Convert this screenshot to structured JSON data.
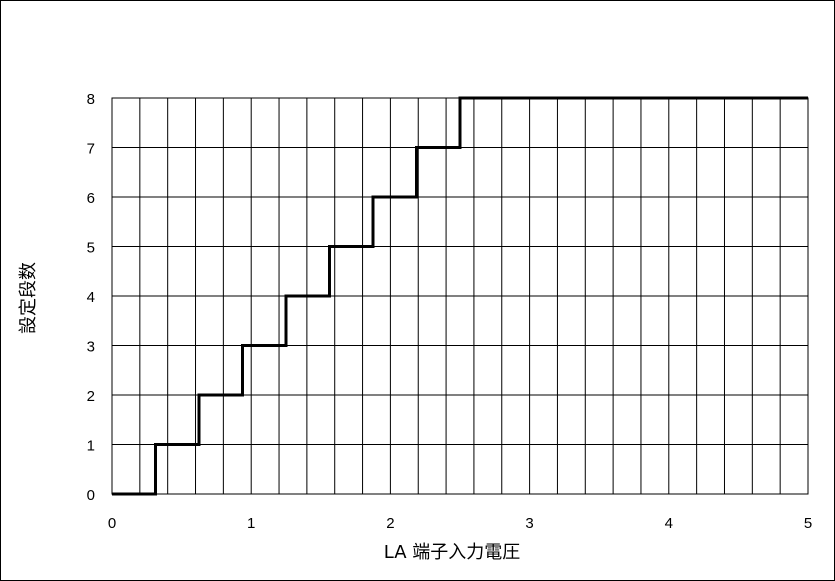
{
  "chart_data": {
    "type": "line",
    "title": "",
    "xlabel": "LA 端子入力電圧",
    "ylabel": "設定段数",
    "xlim": [
      0,
      5
    ],
    "ylim": [
      0,
      8
    ],
    "x_ticks": [
      0,
      1,
      2,
      3,
      4,
      5
    ],
    "y_ticks": [
      0,
      1,
      2,
      3,
      4,
      5,
      6,
      7,
      8
    ],
    "x_tick_labels": [
      "0",
      "1",
      "2",
      "3",
      "4",
      "5"
    ],
    "y_tick_labels": [
      "0",
      "1",
      "2",
      "3",
      "4",
      "5",
      "6",
      "7",
      "8"
    ],
    "minor_x_step": 0.2,
    "grid": true,
    "legend": "none",
    "line_color": "#000000",
    "series": [
      {
        "step": "post",
        "x": [
          0,
          0.3125,
          0.625,
          0.9375,
          1.25,
          1.5625,
          1.875,
          2.1875,
          2.5,
          5
        ],
        "y": [
          0,
          1,
          2,
          3,
          4,
          5,
          6,
          7,
          8,
          8
        ]
      }
    ]
  }
}
